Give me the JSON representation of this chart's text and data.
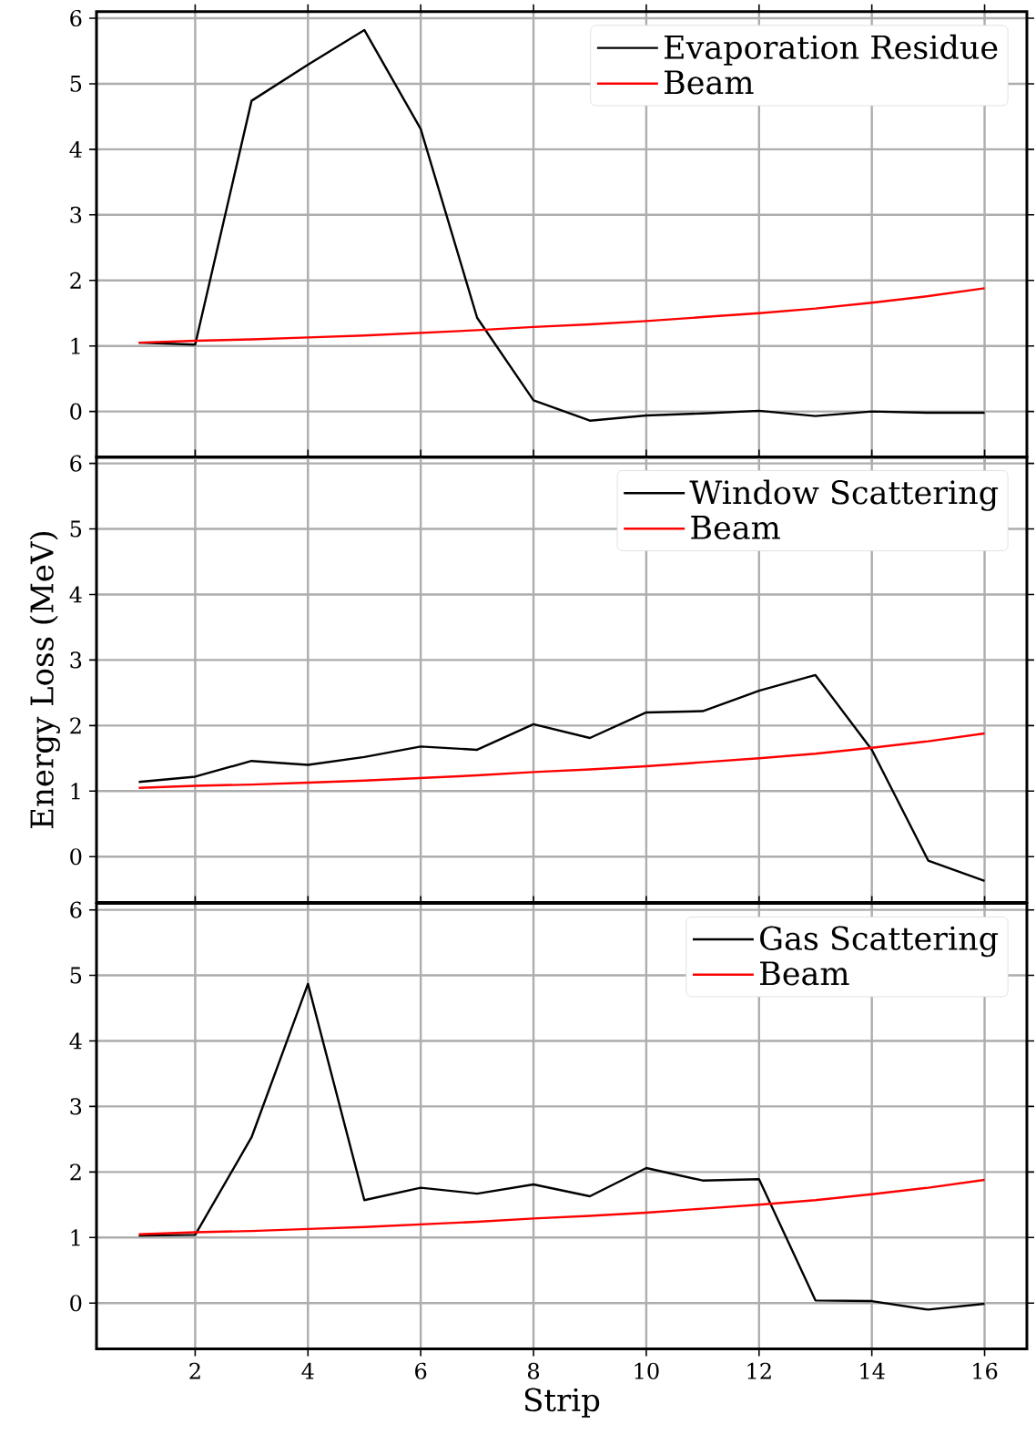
{
  "chart_data": [
    {
      "type": "line",
      "x": [
        1,
        2,
        3,
        4,
        5,
        6,
        7,
        8,
        9,
        10,
        11,
        12,
        13,
        14,
        15,
        16
      ],
      "xlim": [
        0.25,
        16.75
      ],
      "ylim": [
        -0.7,
        6.1
      ],
      "xticks": [
        2,
        4,
        6,
        8,
        10,
        12,
        14,
        16
      ],
      "yticks": [
        0,
        1,
        2,
        3,
        4,
        5,
        6
      ],
      "grid": true,
      "legend": "top right",
      "tick_labels": "y",
      "series": [
        {
          "name": "Evaporation Residue",
          "color": "#000000",
          "values": [
            1.05,
            1.02,
            4.74,
            5.29,
            5.82,
            4.31,
            1.43,
            0.17,
            -0.14,
            -0.06,
            -0.03,
            0.01,
            -0.07,
            0.0,
            -0.02,
            -0.02
          ]
        },
        {
          "name": "Beam",
          "color": "#ff0000",
          "values": [
            1.05,
            1.08,
            1.1,
            1.13,
            1.16,
            1.2,
            1.24,
            1.29,
            1.33,
            1.38,
            1.44,
            1.5,
            1.57,
            1.66,
            1.76,
            1.88
          ]
        }
      ]
    },
    {
      "type": "line",
      "ylabel": "Energy Loss (MeV)",
      "x": [
        1,
        2,
        3,
        4,
        5,
        6,
        7,
        8,
        9,
        10,
        11,
        12,
        13,
        14,
        15,
        16
      ],
      "xlim": [
        0.25,
        16.75
      ],
      "ylim": [
        -0.7,
        6.1
      ],
      "xticks": [
        2,
        4,
        6,
        8,
        10,
        12,
        14,
        16
      ],
      "yticks": [
        0,
        1,
        2,
        3,
        4,
        5,
        6
      ],
      "grid": true,
      "legend": "top right",
      "tick_labels": "y",
      "series": [
        {
          "name": "Window Scattering",
          "color": "#000000",
          "values": [
            1.14,
            1.22,
            1.46,
            1.4,
            1.52,
            1.68,
            1.63,
            2.02,
            1.81,
            2.2,
            2.22,
            2.53,
            2.77,
            1.63,
            -0.06,
            -0.37
          ]
        },
        {
          "name": "Beam",
          "color": "#ff0000",
          "values": [
            1.05,
            1.08,
            1.1,
            1.13,
            1.16,
            1.2,
            1.24,
            1.29,
            1.33,
            1.38,
            1.44,
            1.5,
            1.57,
            1.66,
            1.76,
            1.88
          ]
        }
      ]
    },
    {
      "type": "line",
      "xlabel": "Strip",
      "x": [
        1,
        2,
        3,
        4,
        5,
        6,
        7,
        8,
        9,
        10,
        11,
        12,
        13,
        14,
        15,
        16
      ],
      "xlim": [
        0.25,
        16.75
      ],
      "ylim": [
        -0.7,
        6.1
      ],
      "xticks": [
        2,
        4,
        6,
        8,
        10,
        12,
        14,
        16
      ],
      "yticks": [
        0,
        1,
        2,
        3,
        4,
        5,
        6
      ],
      "grid": true,
      "legend": "top right",
      "series": [
        {
          "name": "Gas Scattering",
          "color": "#000000",
          "values": [
            1.03,
            1.04,
            2.53,
            4.87,
            1.57,
            1.76,
            1.67,
            1.81,
            1.63,
            2.06,
            1.87,
            1.89,
            0.04,
            0.03,
            -0.1,
            -0.01
          ]
        },
        {
          "name": "Beam",
          "color": "#ff0000",
          "values": [
            1.05,
            1.08,
            1.1,
            1.13,
            1.16,
            1.2,
            1.24,
            1.29,
            1.33,
            1.38,
            1.44,
            1.5,
            1.57,
            1.66,
            1.76,
            1.88
          ]
        }
      ]
    }
  ]
}
